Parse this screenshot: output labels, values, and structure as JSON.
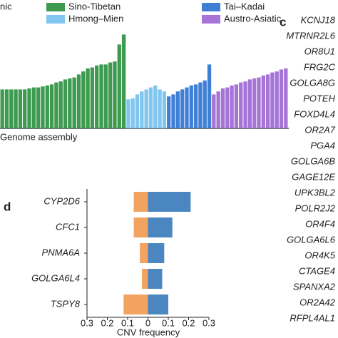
{
  "chart_data": [
    {
      "type": "bar",
      "legend_partial": "nic",
      "xlabel": "Genome assembly",
      "ylim": [
        0,
        100
      ],
      "series": [
        {
          "name": "Sino-Tibetan",
          "color": "#3d9a4f",
          "values": [
            39,
            39,
            39,
            39,
            39,
            39,
            40,
            41,
            41,
            42,
            43,
            44,
            46,
            47,
            49,
            50,
            51,
            54,
            57,
            60,
            61,
            63,
            64,
            64,
            66,
            67,
            84,
            94
          ]
        },
        {
          "name": "Hmong–Mien",
          "color": "#80c6ee",
          "values": [
            29,
            30,
            34,
            37,
            39,
            41,
            43,
            39,
            37
          ]
        },
        {
          "name": "Tai–Kadai",
          "color": "#3f7fd6",
          "values": [
            32,
            34,
            37,
            39,
            41,
            43,
            44,
            46,
            48,
            64
          ]
        },
        {
          "name": "Austro-Asiatic",
          "color": "#a574d6",
          "values": [
            34,
            37,
            40,
            41,
            43,
            44,
            46,
            47,
            49,
            50,
            51,
            53,
            54,
            56,
            57,
            59,
            60
          ]
        }
      ]
    },
    {
      "type": "hbar",
      "panel_label": "d",
      "xlabel": "CNV frequency",
      "categories": [
        "CYP2D6",
        "CFC1",
        "PNMA6A",
        "GOLGA6L4",
        "TSPY8"
      ],
      "xlim": [
        -0.3,
        0.3
      ],
      "xticks": [
        {
          "value": -0.3,
          "label": "0.3"
        },
        {
          "value": -0.2,
          "label": "0.2"
        },
        {
          "value": -0.1,
          "label": "0.1"
        },
        0,
        0.1,
        0.2,
        0.3
      ],
      "series": [
        {
          "color": "#f2a35f",
          "values": [
            -0.07,
            -0.07,
            -0.04,
            -0.03,
            -0.12
          ]
        },
        {
          "color": "#4a86c0",
          "values": [
            0.21,
            0.12,
            0.08,
            0.07,
            0.1
          ]
        }
      ]
    }
  ],
  "panel_c": {
    "label": "c",
    "genes": [
      "KCNJ18",
      "MTRNR2L6",
      "OR8U1",
      "FRG2C",
      "GOLGA8G",
      "POTEH",
      "FOXD4L4",
      "OR2A7",
      "PGA4",
      "GOLGA6B",
      "GAGE12E",
      "UPK3BL2",
      "POLR2J2",
      "OR4F4",
      "GOLGA6L6",
      "OR4K5",
      "CTAGE4",
      "SPANXA2",
      "OR2A42",
      "RFPL4AL1"
    ]
  }
}
